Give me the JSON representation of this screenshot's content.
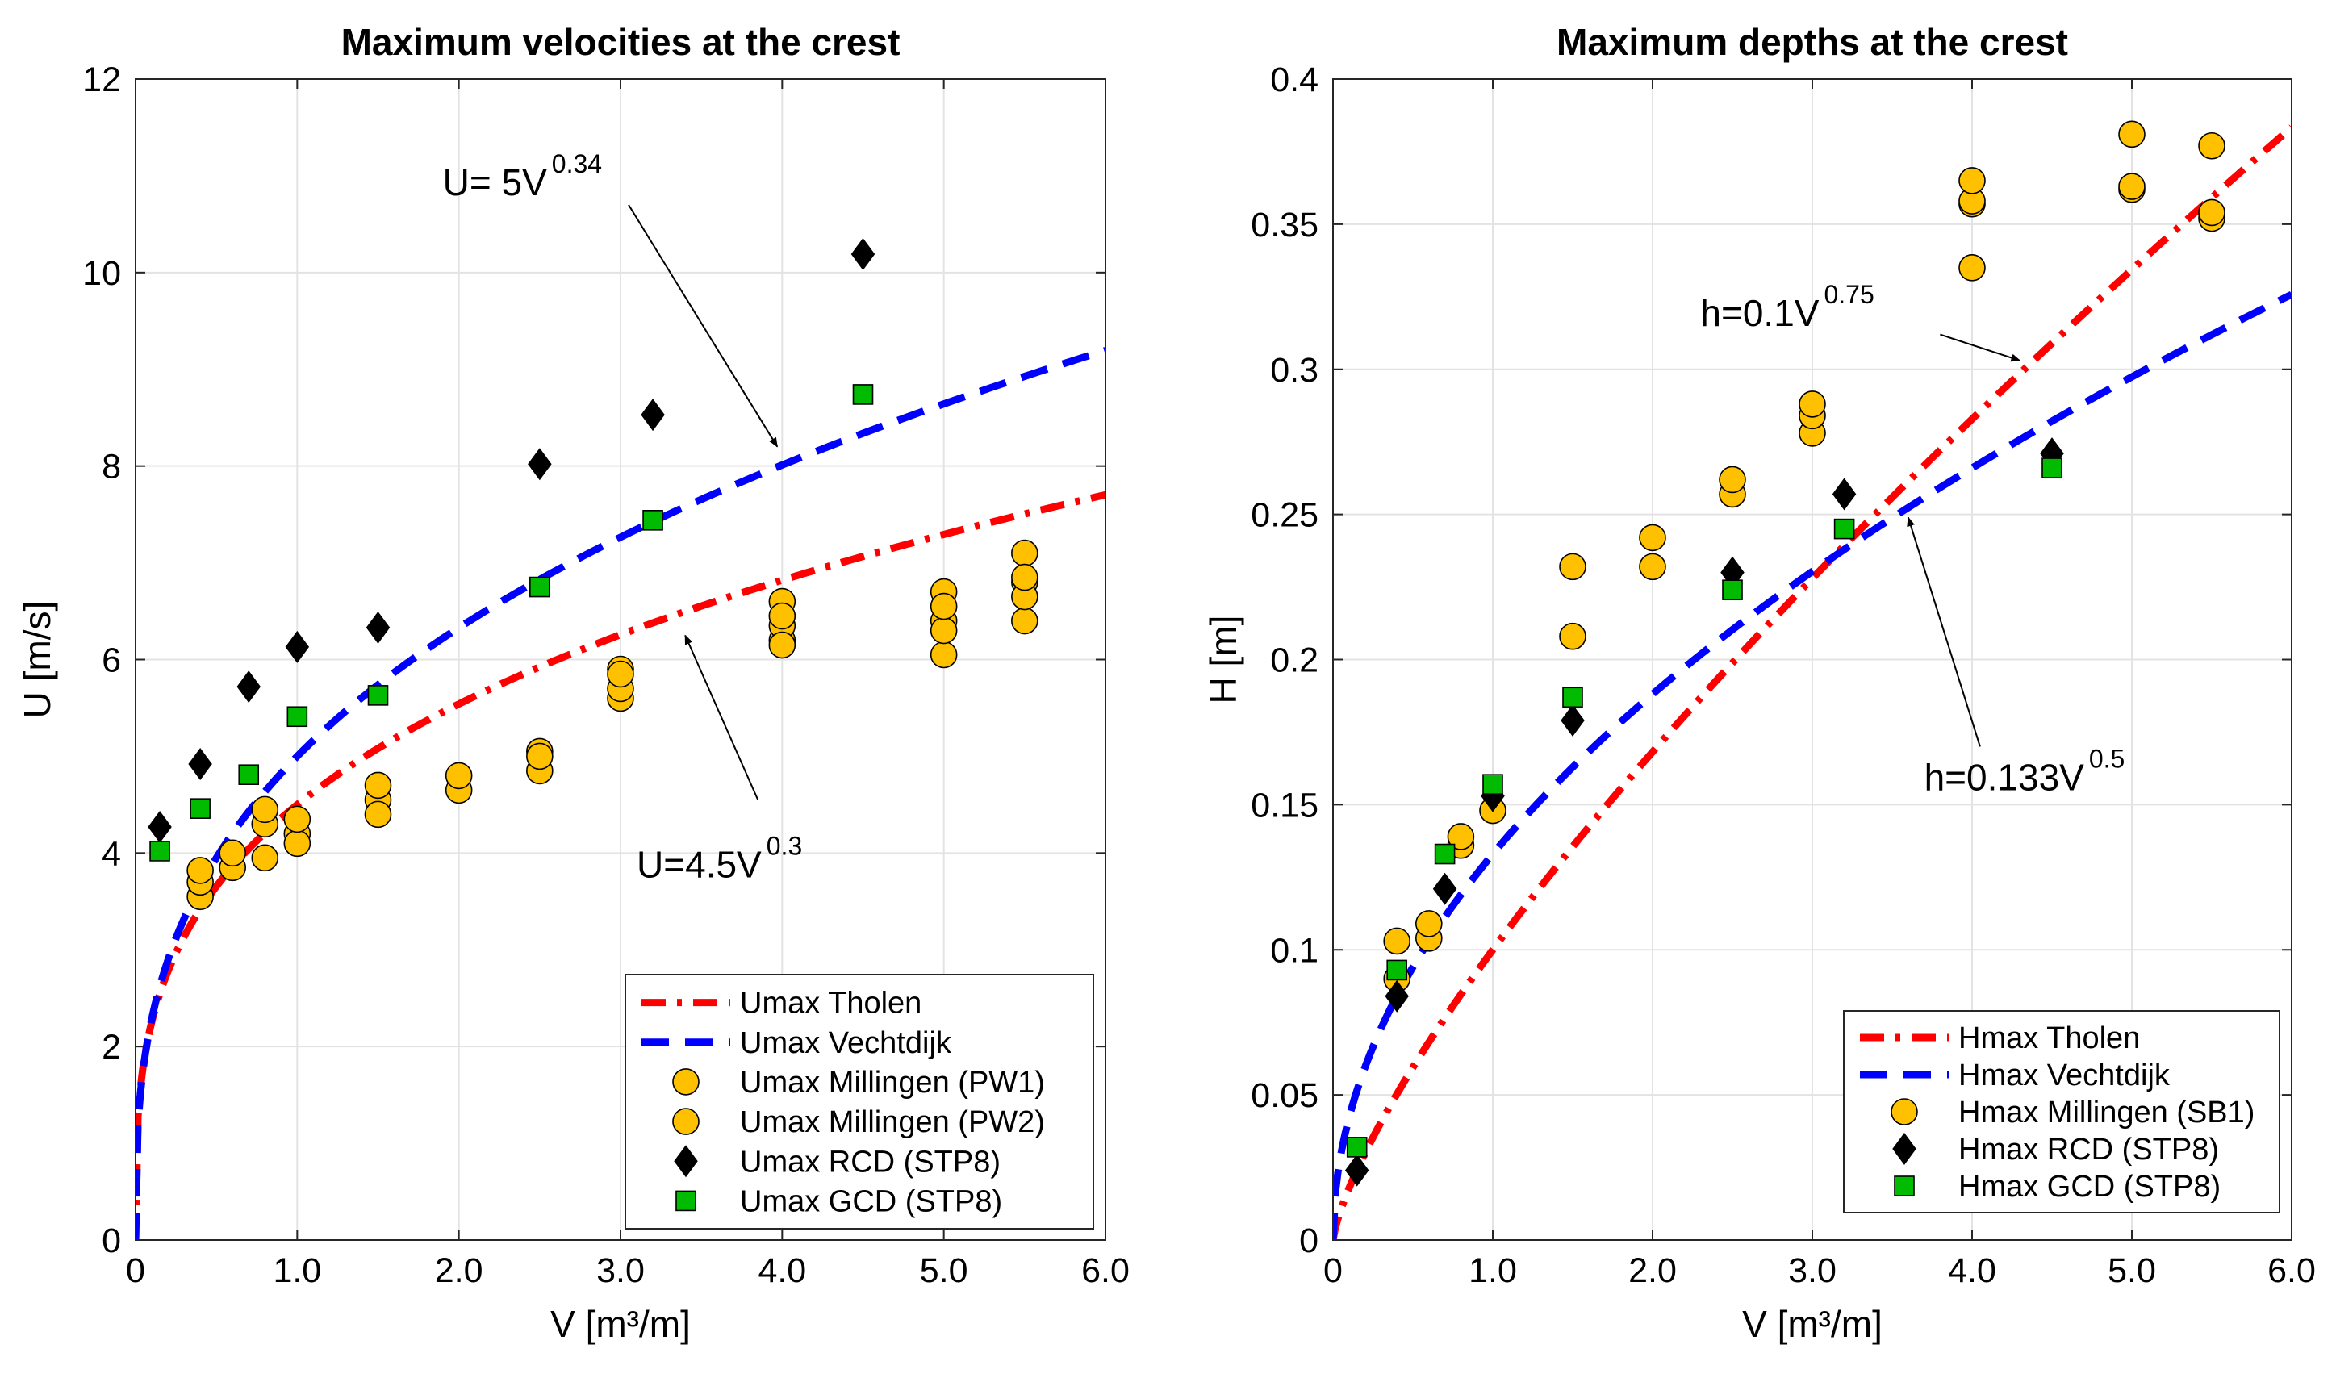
{
  "chart_data": [
    {
      "type": "scatter",
      "title": "Maximum velocities at the crest",
      "xlabel": "V [m³/m]",
      "ylabel": "U [m/s]",
      "xlim": [
        0,
        6
      ],
      "ylim": [
        0,
        12
      ],
      "grid": true,
      "legend_location": "bottom-right",
      "x_ticks": [
        0,
        1,
        2,
        3,
        4,
        5,
        6
      ],
      "x_tick_labels": [
        "0",
        "1.0",
        "2.0",
        "3.0",
        "4.0",
        "5.0",
        "6.0"
      ],
      "y_ticks": [
        0,
        2,
        4,
        6,
        8,
        10,
        12
      ],
      "y_tick_labels": [
        "0",
        "2",
        "4",
        "6",
        "8",
        "10",
        "12"
      ],
      "series": [
        {
          "name": "Umax Tholen",
          "kind": "curve",
          "style": "dash-dot",
          "color": "#ff0000",
          "coef": 4.5,
          "exp": 0.3
        },
        {
          "name": "Umax Vechtdijk",
          "kind": "curve",
          "style": "dashed",
          "color": "#0000ff",
          "coef": 5,
          "exp": 0.34
        },
        {
          "name": "Umax Millingen (PW1)",
          "kind": "points",
          "marker": "circle",
          "color": "#ffc000",
          "x": [
            0.4,
            0.4,
            0.6,
            0.8,
            1.0,
            1.5,
            2.0,
            2.5,
            3.0,
            3.0,
            4.0,
            4.0,
            4.0,
            5.0,
            5.0,
            5.0,
            5.5,
            5.5,
            5.5
          ],
          "y": [
            3.55,
            3.7,
            3.85,
            4.3,
            4.2,
            4.55,
            4.65,
            5.05,
            5.6,
            5.9,
            6.2,
            6.35,
            6.6,
            6.05,
            6.4,
            6.7,
            6.4,
            6.8,
            7.1
          ]
        },
        {
          "name": "Umax Millingen (PW2)",
          "kind": "points",
          "marker": "circle",
          "color": "#ffc000",
          "x": [
            0.4,
            0.6,
            0.8,
            0.8,
            1.0,
            1.0,
            1.5,
            1.5,
            2.0,
            2.5,
            2.5,
            3.0,
            3.0,
            4.0,
            4.0,
            5.0,
            5.0,
            5.5,
            5.5
          ],
          "y": [
            3.82,
            4.0,
            3.95,
            4.45,
            4.1,
            4.35,
            4.4,
            4.7,
            4.8,
            4.85,
            5.0,
            5.7,
            5.85,
            6.15,
            6.45,
            6.3,
            6.55,
            6.65,
            6.85
          ]
        },
        {
          "name": "Umax RCD (STP8)",
          "kind": "points",
          "marker": "diamond",
          "color": "#000000",
          "x": [
            0.15,
            0.4,
            0.7,
            1.0,
            1.5,
            2.5,
            3.2,
            4.5
          ],
          "y": [
            4.27,
            4.92,
            5.72,
            6.13,
            6.33,
            8.02,
            8.53,
            10.19
          ]
        },
        {
          "name": "Umax GCD (STP8)",
          "kind": "points",
          "marker": "square",
          "color": "#00bb00",
          "x": [
            0.15,
            0.4,
            0.7,
            1.0,
            1.5,
            2.5,
            3.2,
            4.5
          ],
          "y": [
            4.02,
            4.46,
            4.81,
            5.41,
            5.63,
            6.75,
            7.44,
            8.74
          ]
        }
      ],
      "annotations": [
        {
          "base": "U= 5V",
          "exp": "0.34",
          "x": 1.9,
          "y": 10.8,
          "arrow_from": [
            3.05,
            10.7
          ],
          "arrow_to": [
            3.97,
            8.2
          ]
        },
        {
          "base": "U=4.5V",
          "exp": "0.3",
          "x": 3.1,
          "y": 3.75,
          "arrow_from": [
            3.85,
            4.55
          ],
          "arrow_to": [
            3.4,
            6.25
          ]
        }
      ]
    },
    {
      "type": "scatter",
      "title": "Maximum depths at the crest",
      "xlabel": "V [m³/m]",
      "ylabel": "H [m]",
      "xlim": [
        0,
        6
      ],
      "ylim": [
        0,
        0.4
      ],
      "grid": true,
      "legend_location": "bottom-right",
      "x_ticks": [
        0,
        1,
        2,
        3,
        4,
        5,
        6
      ],
      "x_tick_labels": [
        "0",
        "1.0",
        "2.0",
        "3.0",
        "4.0",
        "5.0",
        "6.0"
      ],
      "y_ticks": [
        0,
        0.05,
        0.1,
        0.15,
        0.2,
        0.25,
        0.3,
        0.35,
        0.4
      ],
      "y_tick_labels": [
        "0",
        "0.05",
        "0.1",
        "0.15",
        "0.2",
        "0.25",
        "0.3",
        "0.35",
        "0.4"
      ],
      "series": [
        {
          "name": "Hmax Tholen",
          "kind": "curve",
          "style": "dash-dot",
          "color": "#ff0000",
          "coef": 0.1,
          "exp": 0.75
        },
        {
          "name": "Hmax Vechtdijk",
          "kind": "curve",
          "style": "dashed",
          "color": "#0000ff",
          "coef": 0.133,
          "exp": 0.5
        },
        {
          "name": "Hmax Millingen (SB1)",
          "kind": "points",
          "marker": "circle",
          "color": "#ffc000",
          "x": [
            0.4,
            0.4,
            0.6,
            0.6,
            0.8,
            0.8,
            1.0,
            1.5,
            1.5,
            2.0,
            2.0,
            2.5,
            2.5,
            3.0,
            3.0,
            3.0,
            4.0,
            4.0,
            4.0,
            4.0,
            5.0,
            5.0,
            5.0,
            5.5,
            5.5,
            5.5
          ],
          "y": [
            0.09,
            0.103,
            0.104,
            0.109,
            0.136,
            0.139,
            0.148,
            0.208,
            0.232,
            0.232,
            0.242,
            0.257,
            0.262,
            0.278,
            0.284,
            0.288,
            0.335,
            0.357,
            0.358,
            0.365,
            0.362,
            0.363,
            0.381,
            0.352,
            0.354,
            0.377
          ]
        },
        {
          "name": "Hmax RCD (STP8)",
          "kind": "points",
          "marker": "diamond",
          "color": "#000000",
          "x": [
            0.15,
            0.4,
            0.7,
            1.0,
            1.5,
            2.5,
            3.2,
            4.5
          ],
          "y": [
            0.024,
            0.084,
            0.121,
            0.153,
            0.179,
            0.23,
            0.257,
            0.271
          ]
        },
        {
          "name": "Hmax GCD (STP8)",
          "kind": "points",
          "marker": "square",
          "color": "#00bb00",
          "x": [
            0.15,
            0.4,
            0.7,
            1.0,
            1.5,
            2.5,
            3.2,
            4.5
          ],
          "y": [
            0.032,
            0.093,
            0.133,
            0.157,
            0.187,
            0.224,
            0.245,
            0.266
          ]
        }
      ],
      "annotations": [
        {
          "base": "h=0.1V",
          "exp": "0.75",
          "x": 2.3,
          "y": 0.315,
          "arrow_from": [
            3.8,
            0.312
          ],
          "arrow_to": [
            4.3,
            0.303
          ]
        },
        {
          "base": "h=0.133V",
          "exp": "0.5",
          "x": 3.7,
          "y": 0.155,
          "arrow_from": [
            4.05,
            0.17
          ],
          "arrow_to": [
            3.6,
            0.249
          ]
        }
      ]
    }
  ]
}
